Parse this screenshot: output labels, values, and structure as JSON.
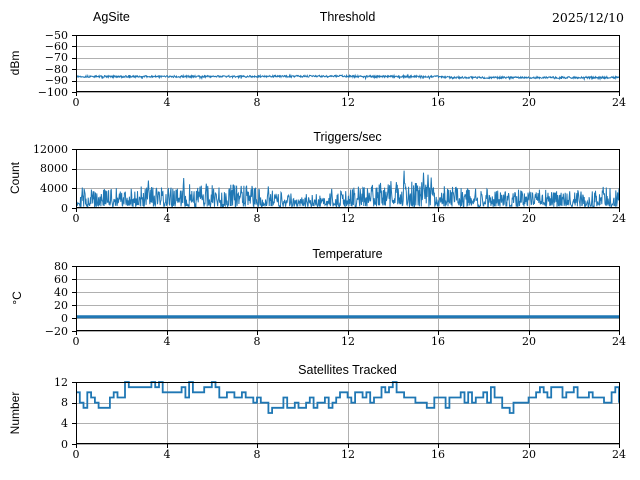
{
  "figure": {
    "background": "#ffffff",
    "text_color": "#000000",
    "grid_color": "#b0b0b0",
    "accent": "#1f77b4"
  },
  "chart_data": [
    {
      "type": "line",
      "titles": {
        "left": "AgSite",
        "center": "Threshold",
        "right": "2025/12/10"
      },
      "ylabel": "dBm",
      "xlabel": "",
      "xlim": [
        0,
        24
      ],
      "ylim": [
        -100,
        -50
      ],
      "xticks": [
        0,
        4,
        8,
        12,
        16,
        20,
        24
      ],
      "yticks": [
        -50,
        -60,
        -70,
        -80,
        -90,
        -100
      ],
      "grid": true,
      "line_color": "#1f77b4",
      "linewidth": 1,
      "series": {
        "kind": "noisy-line",
        "seed": 13,
        "step_hours": 0.02,
        "noise": 0.8,
        "dip_prob": 0.06,
        "dip_amp": 1.5,
        "mean_keypoints": [
          [
            0,
            -86.4
          ],
          [
            4,
            -86.4
          ],
          [
            8,
            -86.3
          ],
          [
            11,
            -86.1
          ],
          [
            11.6,
            -85.9
          ],
          [
            12.2,
            -86.3
          ],
          [
            16,
            -86.4
          ],
          [
            16.6,
            -87.3
          ],
          [
            20,
            -87.4
          ],
          [
            24,
            -87.2
          ]
        ]
      }
    },
    {
      "type": "line",
      "title": "Triggers/sec",
      "ylabel": "Count",
      "xlabel": "",
      "xlim": [
        0,
        24
      ],
      "ylim": [
        0,
        12000
      ],
      "xticks": [
        0,
        4,
        8,
        12,
        16,
        20,
        24
      ],
      "yticks": [
        0,
        4000,
        8000,
        12000
      ],
      "grid": true,
      "line_color": "#1f77b4",
      "linewidth": 1,
      "series": {
        "kind": "spiky",
        "seed": 29,
        "step_hours": 0.02,
        "floor": 250,
        "pow": 1.7,
        "mean_keypoints": [
          [
            0,
            2000
          ],
          [
            1,
            2200
          ],
          [
            2,
            1800
          ],
          [
            3,
            2100
          ],
          [
            4,
            1900
          ],
          [
            5,
            2300
          ],
          [
            6,
            2400
          ],
          [
            7,
            2200
          ],
          [
            8,
            2100
          ],
          [
            9,
            1500
          ],
          [
            10,
            1300
          ],
          [
            11,
            1450
          ],
          [
            12,
            1800
          ],
          [
            13,
            2300
          ],
          [
            14,
            2600
          ],
          [
            15,
            2500
          ],
          [
            16,
            2300
          ],
          [
            17,
            1950
          ],
          [
            18,
            1800
          ],
          [
            19,
            1750
          ],
          [
            20,
            1800
          ],
          [
            21,
            1700
          ],
          [
            22,
            1650
          ],
          [
            23,
            1900
          ],
          [
            24,
            2000
          ]
        ],
        "peaks": [
          [
            3.2,
            5600
          ],
          [
            4.75,
            6100
          ],
          [
            7.3,
            4500
          ],
          [
            8.5,
            4400
          ],
          [
            11.3,
            3900
          ],
          [
            13.1,
            4700
          ],
          [
            13.45,
            5100
          ],
          [
            13.8,
            4800
          ],
          [
            14.5,
            7600
          ],
          [
            15.35,
            7200
          ],
          [
            15.55,
            6800
          ],
          [
            15.7,
            6200
          ],
          [
            23.3,
            4300
          ]
        ]
      }
    },
    {
      "type": "line",
      "title": "Temperature",
      "ylabel": "°C",
      "xlabel": "",
      "xlim": [
        0,
        24
      ],
      "ylim": [
        -20,
        80
      ],
      "xticks": [
        0,
        4,
        8,
        12,
        16,
        20,
        24
      ],
      "yticks": [
        -20,
        0,
        20,
        40,
        60,
        80
      ],
      "grid": true,
      "line_color": "#1f77b4",
      "linewidth": 3,
      "series": {
        "kind": "const",
        "value": 2
      }
    },
    {
      "type": "line",
      "title": "Satellites Tracked",
      "ylabel": "Number",
      "xlabel": "",
      "xlim": [
        0,
        24
      ],
      "ylim": [
        0,
        12
      ],
      "xticks": [
        0,
        4,
        8,
        12,
        16,
        20,
        24
      ],
      "yticks": [
        0,
        4,
        8,
        12
      ],
      "grid": true,
      "line_color": "#1f77b4",
      "linewidth": 1.8,
      "series": {
        "kind": "steps",
        "seed": 7,
        "step_hours": 0.1667,
        "jitter": 3,
        "min": 6,
        "max": 12,
        "mean_keypoints": [
          [
            0,
            9.5
          ],
          [
            0.7,
            8
          ],
          [
            1,
            7
          ],
          [
            1.5,
            8.5
          ],
          [
            2,
            10.5
          ],
          [
            2.5,
            11.5
          ],
          [
            3,
            11
          ],
          [
            3.5,
            11.5
          ],
          [
            4,
            11
          ],
          [
            4.5,
            10
          ],
          [
            5,
            10.5
          ],
          [
            5.5,
            9.5
          ],
          [
            6,
            10.5
          ],
          [
            6.5,
            10
          ],
          [
            7,
            10
          ],
          [
            7.5,
            9.5
          ],
          [
            8,
            8
          ],
          [
            8.5,
            7
          ],
          [
            9,
            8
          ],
          [
            9.5,
            7.5
          ],
          [
            10,
            8
          ],
          [
            10.5,
            7
          ],
          [
            11,
            7.5
          ],
          [
            11.5,
            8.5
          ],
          [
            12,
            8
          ],
          [
            12.5,
            8.5
          ],
          [
            13,
            9
          ],
          [
            13.5,
            10
          ],
          [
            14,
            10.5
          ],
          [
            14.5,
            9
          ],
          [
            15,
            8
          ],
          [
            15.5,
            8.5
          ],
          [
            16,
            8
          ],
          [
            16.5,
            8.5
          ],
          [
            17,
            9
          ],
          [
            17.5,
            8
          ],
          [
            18,
            9.5
          ],
          [
            18.5,
            9
          ],
          [
            19,
            7.5
          ],
          [
            19.5,
            6.5
          ],
          [
            20,
            8
          ],
          [
            20.5,
            9.5
          ],
          [
            21,
            10.5
          ],
          [
            21.5,
            10
          ],
          [
            22,
            10.5
          ],
          [
            22.5,
            9.5
          ],
          [
            23,
            10.5
          ],
          [
            23.5,
            9.5
          ],
          [
            24,
            9
          ]
        ]
      }
    }
  ]
}
